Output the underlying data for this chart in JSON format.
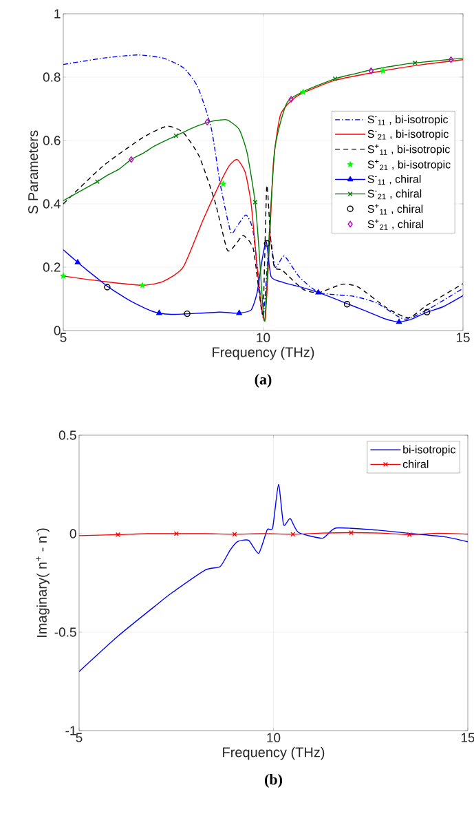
{
  "chart_data": [
    {
      "type": "line",
      "xlabel": "Frequency (THz)",
      "ylabel": "S Parameters",
      "annotations": [
        "(a)"
      ],
      "xlim": [
        5,
        15
      ],
      "ylim": [
        0,
        1
      ],
      "xticks": [
        5,
        10,
        15
      ],
      "yticks": [
        0,
        0.2,
        0.4,
        0.6,
        0.8,
        1
      ],
      "grid": true,
      "legend": "right",
      "series": [
        {
          "name": "S$^{-}$$_{11}$ , bi-isotropic",
          "color": "#0000ff",
          "line_style": "dashdot",
          "x": [
            5,
            6,
            6.86,
            7.5,
            8.0,
            8.36,
            8.7,
            8.93,
            9.19,
            9.35,
            9.57,
            9.74,
            9.88,
            10.0,
            10.1,
            10.17,
            10.3,
            10.53,
            10.9,
            11.4,
            12.26,
            12.84,
            13.53,
            14.1,
            15
          ],
          "values": [
            0.84,
            0.86,
            0.87,
            0.86,
            0.83,
            0.77,
            0.64,
            0.46,
            0.31,
            0.33,
            0.365,
            0.32,
            0.17,
            0.04,
            0.2,
            0.3,
            0.2,
            0.235,
            0.17,
            0.12,
            0.108,
            0.087,
            0.036,
            0.065,
            0.133
          ]
        },
        {
          "name": "S$^{-}$$_{21}$ , bi-isotropic",
          "color": "#ff0000",
          "line_style": "solid",
          "x": [
            5,
            6,
            7,
            7.5,
            8,
            8.5,
            8.9,
            9.15,
            9.35,
            9.55,
            9.7,
            9.85,
            9.95,
            10.05,
            10.15,
            10.26,
            10.43,
            10.7,
            11,
            11.8,
            13,
            14,
            15
          ],
          "values": [
            0.172,
            0.155,
            0.143,
            0.155,
            0.2,
            0.35,
            0.46,
            0.52,
            0.54,
            0.5,
            0.4,
            0.2,
            0.08,
            0.033,
            0.25,
            0.535,
            0.68,
            0.725,
            0.75,
            0.79,
            0.82,
            0.84,
            0.855
          ]
        },
        {
          "name": "S$^{+}$$_{11}$ , bi-isotropic",
          "color": "#000000",
          "line_style": "dashed",
          "x": [
            5,
            6,
            7,
            7.6,
            8.0,
            8.4,
            8.8,
            9.1,
            9.3,
            9.5,
            9.75,
            9.9,
            10.0,
            10.09,
            10.18,
            10.28,
            10.48,
            11.0,
            11.4,
            11.98,
            12.38,
            13.1,
            13.64,
            14.1,
            15
          ],
          "values": [
            0.4,
            0.52,
            0.61,
            0.645,
            0.625,
            0.55,
            0.405,
            0.255,
            0.27,
            0.3,
            0.26,
            0.12,
            0.06,
            0.456,
            0.3,
            0.2,
            0.19,
            0.13,
            0.12,
            0.146,
            0.137,
            0.071,
            0.04,
            0.08,
            0.148
          ]
        },
        {
          "name": "S$^{+}$$_{21}$ , bi-isotropic",
          "color": "#00ff00",
          "type": "scatter",
          "marker": "star",
          "x": [
            5.0,
            6.98,
            9.0,
            11.0,
            13.0
          ],
          "values": [
            0.172,
            0.143,
            0.463,
            0.753,
            0.82
          ]
        },
        {
          "name": "S$^{-}$$_{11}$ , chiral",
          "color": "#0000ff",
          "line_style": "solid",
          "x": [
            5.0,
            5.36,
            5.6,
            5.85,
            6.1,
            6.4,
            6.7,
            7.0,
            7.2,
            7.4,
            7.7,
            8.0,
            8.3,
            8.6,
            8.9,
            9.1,
            9.25,
            9.4,
            9.7,
            9.85,
            9.97,
            10.08,
            10.2,
            10.5,
            11.0,
            11.38,
            11.7,
            12.0,
            12.3,
            12.6,
            12.85,
            13.05,
            13.25,
            13.4,
            13.7,
            14.1,
            14.5,
            15.0
          ],
          "values": [
            0.255,
            0.215,
            0.19,
            0.165,
            0.14,
            0.115,
            0.092,
            0.073,
            0.062,
            0.055,
            0.051,
            0.052,
            0.054,
            0.056,
            0.058,
            0.057,
            0.055,
            0.055,
            0.065,
            0.12,
            0.22,
            0.28,
            0.17,
            0.152,
            0.135,
            0.12,
            0.105,
            0.09,
            0.075,
            0.06,
            0.047,
            0.037,
            0.03,
            0.027,
            0.035,
            0.058,
            0.075,
            0.11
          ]
        },
        {
          "color": "#0000ff",
          "type": "scatter",
          "marker": "triangle",
          "x": [
            5.36,
            7.4,
            9.4,
            11.38,
            13.4
          ],
          "values": [
            0.215,
            0.055,
            0.055,
            0.12,
            0.027
          ]
        },
        {
          "name": "S$^{-}$$_{21}$ , chiral",
          "color": "#008000",
          "line_style": "solid",
          "x": [
            5.0,
            5.85,
            6.1,
            6.4,
            6.7,
            7.0,
            7.25,
            7.45,
            7.65,
            7.82,
            8.1,
            8.4,
            8.7,
            8.9,
            9.1,
            9.4,
            9.6,
            9.8,
            9.9,
            10.0,
            10.05,
            10.15,
            10.3,
            10.6,
            11.1,
            11.8,
            12.1,
            12.35,
            12.6,
            12.85,
            13.1,
            13.35,
            13.6,
            13.8,
            14.2,
            14.6,
            15.0
          ],
          "values": [
            0.41,
            0.47,
            0.49,
            0.51,
            0.54,
            0.56,
            0.58,
            0.593,
            0.605,
            0.615,
            0.632,
            0.648,
            0.66,
            0.664,
            0.665,
            0.635,
            0.56,
            0.405,
            0.25,
            0.06,
            0.04,
            0.3,
            0.58,
            0.72,
            0.76,
            0.795,
            0.805,
            0.812,
            0.82,
            0.826,
            0.832,
            0.837,
            0.842,
            0.845,
            0.85,
            0.855,
            0.86
          ]
        },
        {
          "color": "#008000",
          "type": "scatter",
          "marker": "cross",
          "x": [
            5.85,
            7.82,
            9.8,
            11.8,
            13.8
          ],
          "values": [
            0.47,
            0.615,
            0.405,
            0.795,
            0.845
          ]
        },
        {
          "name": "S$^{+}$$_{11}$ , chiral",
          "color": "#000000",
          "type": "scatter",
          "marker": "circle",
          "x": [
            6.1,
            8.1,
            10.1,
            12.1,
            14.1
          ],
          "values": [
            0.137,
            0.053,
            0.275,
            0.083,
            0.058
          ]
        },
        {
          "name": "S$^{+}$$_{21}$ , chiral",
          "color": "#bf00bf",
          "type": "scatter",
          "marker": "diamond",
          "x": [
            6.7,
            8.6,
            10.7,
            12.7,
            14.7
          ],
          "values": [
            0.54,
            0.658,
            0.73,
            0.82,
            0.855
          ]
        }
      ]
    },
    {
      "type": "line",
      "xlabel": "Frequency (THz)",
      "ylabel": "Imaginary( n$^{+}$ - n$^{-}$)",
      "annotations": [
        "(b)"
      ],
      "xlim": [
        5,
        15
      ],
      "ylim": [
        -1,
        0.5
      ],
      "xticks": [
        5,
        10,
        15
      ],
      "yticks": [
        -1,
        -0.5,
        0,
        0.5
      ],
      "grid": true,
      "legend": "top right",
      "series": [
        {
          "name": "bi-isotropic",
          "color": "#0000ff",
          "line_style": "solid",
          "x": [
            5,
            6,
            7,
            7.39,
            8.25,
            8.63,
            8.88,
            9.08,
            9.36,
            9.62,
            9.84,
            9.98,
            10.13,
            10.26,
            10.43,
            10.64,
            11.26,
            11.61,
            12.68,
            13.58,
            14.41,
            15.0
          ],
          "values": [
            -0.7,
            -0.52,
            -0.36,
            -0.3,
            -0.184,
            -0.167,
            -0.085,
            -0.04,
            -0.034,
            -0.1,
            0.02,
            0.03,
            0.25,
            0.045,
            0.077,
            0.007,
            -0.023,
            0.029,
            0.018,
            0.0,
            -0.016,
            -0.041
          ]
        },
        {
          "name": "chiral",
          "color": "#ff0000",
          "line_style": "solid",
          "x": [
            5.0,
            6.0,
            6.75,
            7.5,
            8.25,
            9.0,
            9.75,
            10.5,
            11.25,
            12.0,
            12.75,
            13.5,
            14.25,
            15.0
          ],
          "values": [
            -0.01,
            -0.005,
            0.0,
            0.0,
            0.0,
            -0.003,
            0.0,
            -0.003,
            0.003,
            0.005,
            0.003,
            -0.005,
            0.002,
            -0.003
          ]
        },
        {
          "color": "#ff0000",
          "type": "scatter",
          "marker": "cross",
          "x": [
            6.0,
            7.5,
            9.0,
            10.5,
            12.0,
            13.5
          ],
          "values": [
            -0.005,
            0.0,
            -0.003,
            -0.003,
            0.005,
            -0.005
          ]
        }
      ]
    }
  ]
}
